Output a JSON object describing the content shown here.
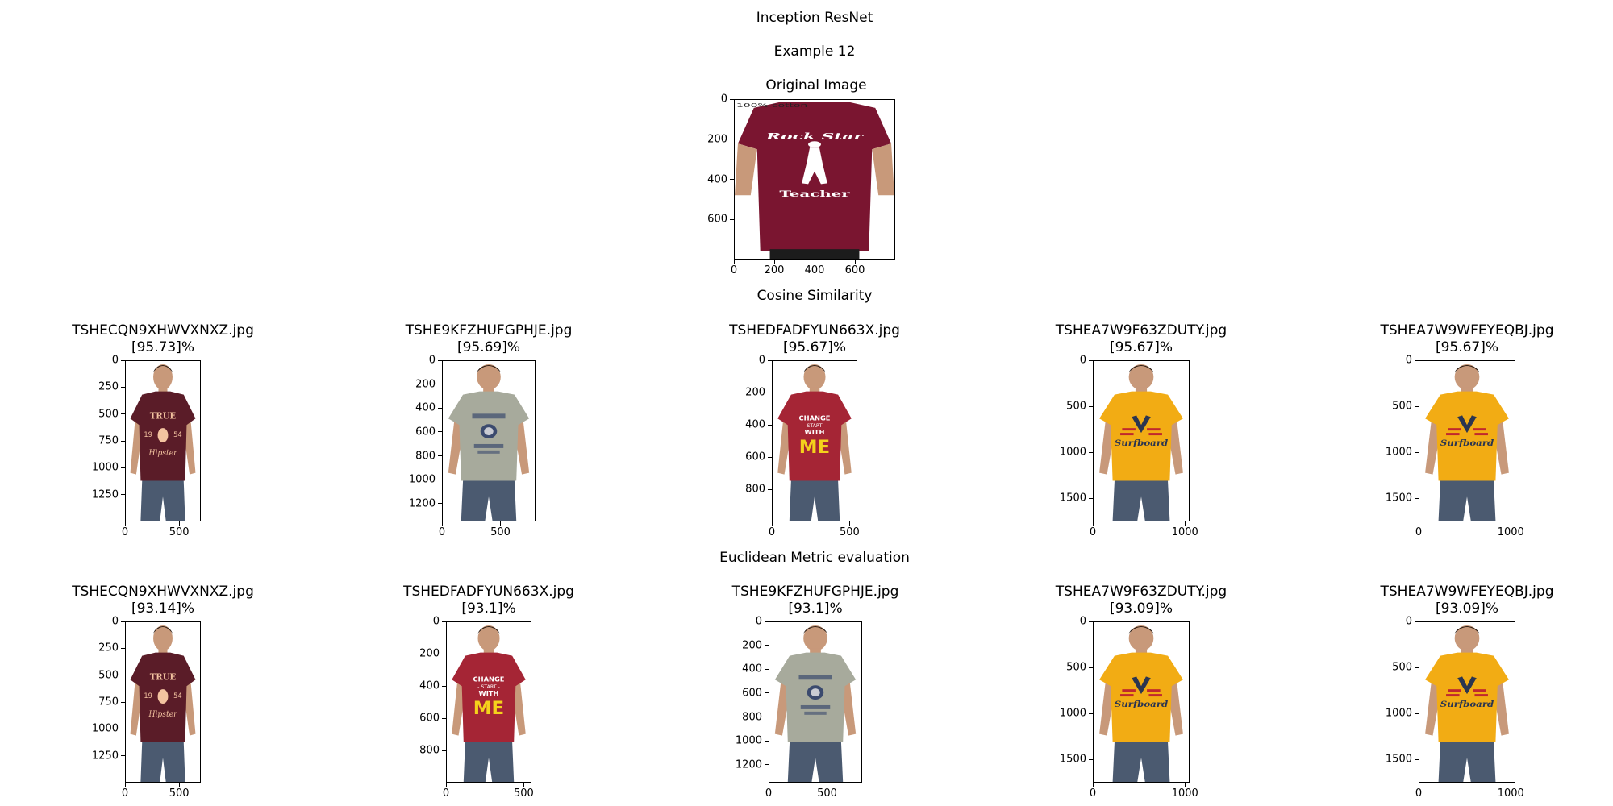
{
  "figure": {
    "title": "Inception ResNet",
    "subtitle": "Example 12",
    "original_title": "Original Image",
    "cosine_header": "Cosine Similarity",
    "euclid_header": "Euclidean Metric evaluation"
  },
  "colors": {
    "maroon_shirt": "#7a1530",
    "dark_maroon_shirt": "#5a1c28",
    "grey_shirt": "#a7aa9c",
    "red_shirt": "#a52535",
    "yellow_shirt": "#f2ac14",
    "skin": "#c8997a",
    "jeans": "#4b5a70"
  },
  "chart_data": [
    {
      "type": "image",
      "panel": "original",
      "title": "Original Image",
      "shirt_color": "maroon",
      "print_text": [
        "100% cotton",
        "Rock Star",
        "Teacher"
      ],
      "xlim": [
        0,
        800
      ],
      "ylim": [
        800,
        0
      ],
      "xticks": [
        "0",
        "200",
        "400",
        "600"
      ],
      "yticks": [
        "0",
        "200",
        "400",
        "600"
      ]
    },
    {
      "type": "image",
      "panel": "cosine-1",
      "filename": "TSHECQN9XHWVXNXZ.jpg",
      "score": "[95.73]%",
      "shirt_color": "dark-maroon",
      "print_text": [
        "TRUE",
        "19",
        "54",
        "Hipster"
      ],
      "xlim": [
        0,
        700
      ],
      "ylim": [
        1500,
        0
      ],
      "xticks": [
        "0",
        "500"
      ],
      "yticks": [
        "0",
        "250",
        "500",
        "750",
        "1000",
        "1250"
      ]
    },
    {
      "type": "image",
      "panel": "cosine-2",
      "filename": "TSHE9KFZHUFGPHJE.jpg",
      "score": "[95.69]%",
      "shirt_color": "grey",
      "print_text": [],
      "xlim": [
        0,
        800
      ],
      "ylim": [
        1350,
        0
      ],
      "xticks": [
        "0",
        "500"
      ],
      "yticks": [
        "0",
        "200",
        "400",
        "600",
        "800",
        "1000",
        "1200"
      ]
    },
    {
      "type": "image",
      "panel": "cosine-3",
      "filename": "TSHEDFADFYUN663X.jpg",
      "score": "[95.67]%",
      "shirt_color": "red",
      "print_text": [
        "CHANGE",
        "START",
        "WITH",
        "ME"
      ],
      "xlim": [
        0,
        550
      ],
      "ylim": [
        1000,
        0
      ],
      "xticks": [
        "0",
        "500"
      ],
      "yticks": [
        "0",
        "200",
        "400",
        "600",
        "800"
      ]
    },
    {
      "type": "image",
      "panel": "cosine-4",
      "filename": "TSHEA7W9F63ZDUTY.jpg",
      "score": "[95.67]%",
      "shirt_color": "yellow",
      "print_text": [
        "Surfboard"
      ],
      "xlim": [
        0,
        1050
      ],
      "ylim": [
        1750,
        0
      ],
      "xticks": [
        "0",
        "1000"
      ],
      "yticks": [
        "0",
        "500",
        "1000",
        "1500"
      ]
    },
    {
      "type": "image",
      "panel": "cosine-5",
      "filename": "TSHEA7W9WFEYEQBJ.jpg",
      "score": "[95.67]%",
      "shirt_color": "yellow",
      "print_text": [
        "Surfboard"
      ],
      "xlim": [
        0,
        1050
      ],
      "ylim": [
        1750,
        0
      ],
      "xticks": [
        "0",
        "1000"
      ],
      "yticks": [
        "0",
        "500",
        "1000",
        "1500"
      ]
    },
    {
      "type": "image",
      "panel": "euclid-1",
      "filename": "TSHECQN9XHWVXNXZ.jpg",
      "score": "[93.14]%",
      "shirt_color": "dark-maroon",
      "print_text": [
        "TRUE",
        "19",
        "54",
        "Hipster"
      ],
      "xlim": [
        0,
        700
      ],
      "ylim": [
        1500,
        0
      ],
      "xticks": [
        "0",
        "500"
      ],
      "yticks": [
        "0",
        "250",
        "500",
        "750",
        "1000",
        "1250"
      ]
    },
    {
      "type": "image",
      "panel": "euclid-2",
      "filename": "TSHEDFADFYUN663X.jpg",
      "score": "[93.1]%",
      "shirt_color": "red",
      "print_text": [
        "CHANGE",
        "START",
        "WITH",
        "ME"
      ],
      "xlim": [
        0,
        550
      ],
      "ylim": [
        1000,
        0
      ],
      "xticks": [
        "0",
        "500"
      ],
      "yticks": [
        "0",
        "200",
        "400",
        "600",
        "800"
      ]
    },
    {
      "type": "image",
      "panel": "euclid-3",
      "filename": "TSHE9KFZHUFGPHJE.jpg",
      "score": "[93.1]%",
      "shirt_color": "grey",
      "print_text": [],
      "xlim": [
        0,
        800
      ],
      "ylim": [
        1350,
        0
      ],
      "xticks": [
        "0",
        "500"
      ],
      "yticks": [
        "0",
        "200",
        "400",
        "600",
        "800",
        "1000",
        "1200"
      ]
    },
    {
      "type": "image",
      "panel": "euclid-4",
      "filename": "TSHEA7W9F63ZDUTY.jpg",
      "score": "[93.09]%",
      "shirt_color": "yellow",
      "print_text": [
        "Surfboard"
      ],
      "xlim": [
        0,
        1050
      ],
      "ylim": [
        1750,
        0
      ],
      "xticks": [
        "0",
        "1000"
      ],
      "yticks": [
        "0",
        "500",
        "1000",
        "1500"
      ]
    },
    {
      "type": "image",
      "panel": "euclid-5",
      "filename": "TSHEA7W9WFEYEQBJ.jpg",
      "score": "[93.09]%",
      "shirt_color": "yellow",
      "print_text": [
        "Surfboard"
      ],
      "xlim": [
        0,
        1050
      ],
      "ylim": [
        1750,
        0
      ],
      "xticks": [
        "0",
        "1000"
      ],
      "yticks": [
        "0",
        "500",
        "1000",
        "1500"
      ]
    }
  ]
}
